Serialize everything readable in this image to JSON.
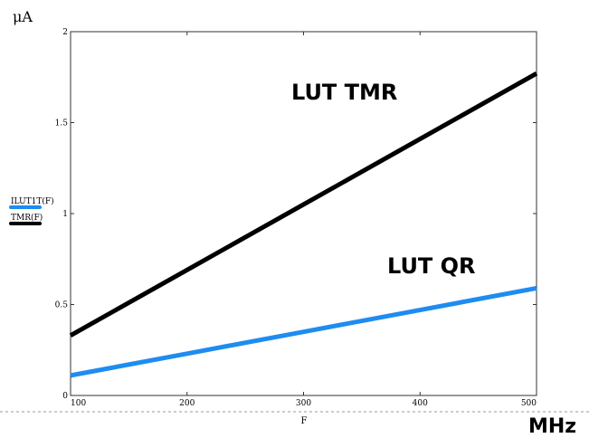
{
  "chart_data": {
    "type": "line",
    "x": [
      100,
      200,
      300,
      400,
      500
    ],
    "xlim": [
      100,
      500
    ],
    "ylim": [
      0,
      2
    ],
    "x_ticks": [
      100,
      200,
      300,
      400,
      500
    ],
    "y_ticks": [
      0,
      0.5,
      1,
      1.5,
      2
    ],
    "y_tick_labels": [
      "0",
      "0.5",
      "1",
      "1.5",
      "2"
    ],
    "xlabel": "F",
    "ylabel": "μA",
    "unit_label": "MHz",
    "grid": false,
    "series": [
      {
        "name": "ILUT1T(F)",
        "color": "#1e8cf0",
        "values": [
          0.11,
          0.23,
          0.35,
          0.47,
          0.59
        ],
        "annotation": "LUT QR"
      },
      {
        "name": "TMR(F)",
        "color": "#000000",
        "values": [
          0.33,
          0.69,
          1.05,
          1.41,
          1.77
        ],
        "annotation": "LUT TMR"
      }
    ]
  }
}
